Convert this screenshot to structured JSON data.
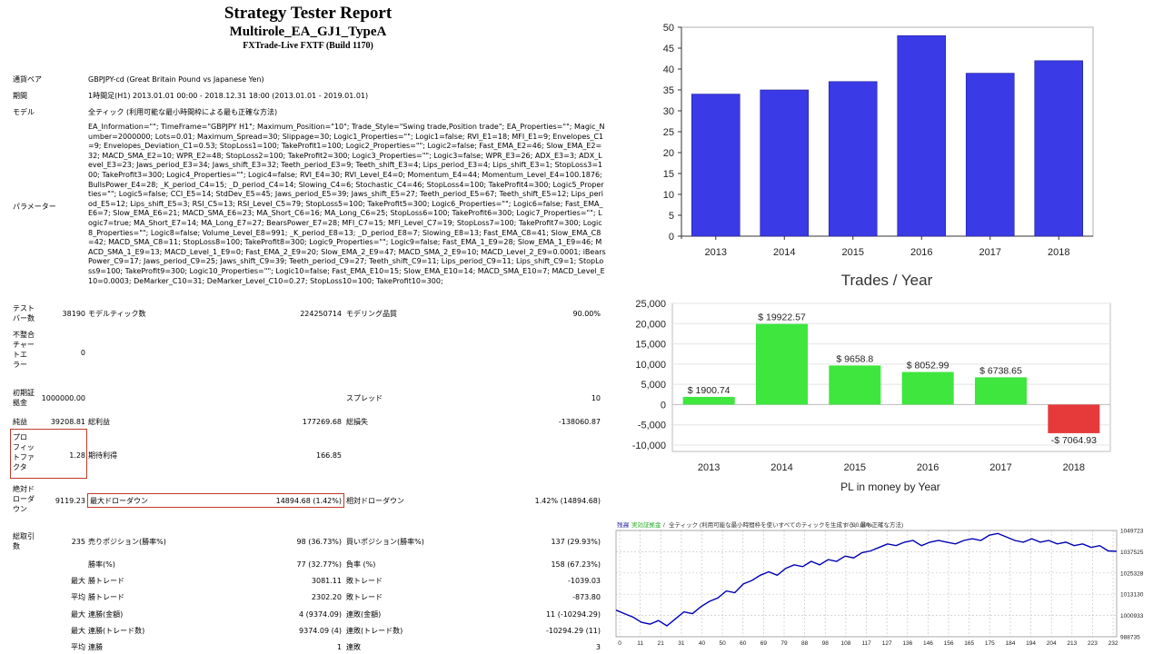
{
  "report": {
    "title": "Strategy Tester Report",
    "ea_name": "Multirole_EA_GJ1_TypeA",
    "server": "FXTrade-Live FXTF (Build 1170)"
  },
  "info": [
    {
      "label": "通貨ペア",
      "value": "GBPJPY-cd (Great Britain Pound vs Japanese Yen)"
    },
    {
      "label": "期間",
      "value": "1時間足(H1) 2013.01.01 00:00 - 2018.12.31 18:00 (2013.01.01 - 2019.01.01)"
    },
    {
      "label": "モデル",
      "value": "全ティック (利用可能な最小時間枠による最も正確な方法)"
    }
  ],
  "params": {
    "label": "パラメーター",
    "text": "EA_Information=\"\"; TimeFrame=\"GBPJPY H1\"; Maximum_Position=\"10\"; Trade_Style=\"Swing trade,Position trade\"; EA_Properties=\"\"; Magic_Number=2000000; Lots=0.01; Maximum_Spread=30; Slippage=30; Logic1_Properties=\"\"; Logic1=false; RVI_E1=18; MFI_E1=9; Envelopes_C1=9; Envelopes_Deviation_C1=0.53; StopLoss1=100; TakeProfit1=100; Logic2_Properties=\"\"; Logic2=false; Fast_EMA_E2=46; Slow_EMA_E2=32; MACD_SMA_E2=10; WPR_E2=48; StopLoss2=100; TakeProfit2=300; Logic3_Properties=\"\"; Logic3=false; WPR_E3=26; ADX_E3=3; ADX_Level_E3=23; Jaws_period_E3=34; Jaws_shift_E3=32; Teeth_period_E3=9; Teeth_shift_E3=4; Lips_period_E3=4; Lips_shift_E3=1; StopLoss3=100; TakeProfit3=300; Logic4_Properties=\"\"; Logic4=false; RVI_E4=30; RVI_Level_E4=0; Momentum_E4=44; Momentum_Level_E4=100.1876; BullsPower_E4=28; _K_period_C4=15; _D_period_C4=14; Slowing_C4=6; Stochastic_C4=46; StopLoss4=100; TakeProfit4=300; Logic5_Properties=\"\"; Logic5=false; CCI_E5=14; StdDev_E5=45; Jaws_period_E5=39; Jaws_shift_E5=27; Teeth_period_E5=67; Teeth_shift_E5=12; Lips_period_E5=12; Lips_shift_E5=3; RSI_C5=13; RSI_Level_C5=79; StopLoss5=100; TakeProfit5=300; Logic6_Properties=\"\"; Logic6=false; Fast_EMA_E6=7; Slow_EMA_E6=21; MACD_SMA_E6=23; MA_Short_C6=16; MA_Long_C6=25; StopLoss6=100; TakeProfit6=300; Logic7_Properties=\"\"; Logic7=true; MA_Short_E7=14; MA_Long_E7=27; BearsPower_E7=28; MFI_C7=15; MFI_Level_C7=19; StopLoss7=100; TakeProfit7=300; Logic8_Properties=\"\"; Logic8=false; Volume_Level_E8=991; _K_period_E8=13; _D_period_E8=7; Slowing_E8=13; Fast_EMA_C8=41; Slow_EMA_C8=42; MACD_SMA_C8=11; StopLoss8=100; TakeProfit8=300; Logic9_Properties=\"\"; Logic9=false; Fast_EMA_1_E9=28; Slow_EMA_1_E9=46; MACD_SMA_1_E9=13; MACD_Level_1_E9=0; Fast_EMA_2_E9=20; Slow_EMA_2_E9=47; MACD_SMA_2_E9=10; MACD_Level_2_E9=0.0001; iBearsPower_C9=17; Jaws_period_C9=25; Jaws_shift_C9=39; Teeth_period_C9=27; Teeth_shift_C9=11; Lips_period_C9=11; Lips_shift_C9=1; StopLoss9=100; TakeProfit9=300; Logic10_Properties=\"\"; Logic10=false; Fast_EMA_E10=15; Slow_EMA_E10=14; MACD_SMA_E10=7; MACD_Level_E10=0.0003; DeMarker_C10=31; DeMarker_Level_C10=0.27; StopLoss10=100; TakeProfit10=300;"
  },
  "stats": {
    "bars_label": "テスト\nバー数",
    "bars_value": "38190",
    "ticks_label": "モデルティック数",
    "ticks_value": "224250714",
    "quality_label": "モデリング品質",
    "quality_value": "90.00%",
    "mismatch_label": "不整合\nチャー\nトエ\nラー",
    "mismatch_value": "0",
    "deposit_label": "初期証\n拠金",
    "deposit_value": "1000000.00",
    "spread_label": "スプレッド",
    "spread_value": "10",
    "net_label": "純益",
    "net_value": "39208.81",
    "gross_profit_label": "総利益",
    "gross_profit_value": "177269.68",
    "gross_loss_label": "総損失",
    "gross_loss_value": "-138060.87",
    "pf_label": "プロ\nフィッ\nトファ\nクタ",
    "pf_value": "1.28",
    "expected_label": "期待利得",
    "expected_value": "166.85",
    "abs_dd_label": "絶対ド\nローダ\nウン",
    "abs_dd_value": "9119.23",
    "max_dd_label": "最大ドローダウン",
    "max_dd_value": "14894.68 (1.42%)",
    "rel_dd_label": "相対ドローダウン",
    "rel_dd_value": "1.42% (14894.68)",
    "total_trades_label": "総取引\n数",
    "total_trades_value": "235",
    "short_label": "売りポジション(勝率%)",
    "short_value": "98 (36.73%)",
    "long_label": "買いポジション(勝率%)",
    "long_value": "137 (29.93%)",
    "win_rate_label": "勝率(%)",
    "win_rate_value": "77 (32.77%)",
    "loss_rate_label": "負率 (%)",
    "loss_rate_value": "158 (67.23%)",
    "max_label": "最大",
    "avg_label": "平均",
    "max_win_label": "勝トレード",
    "max_win_value": "3081.11",
    "max_loss_label": "敗トレード",
    "max_loss_value": "-1039.03",
    "avg_win_label": "勝トレード",
    "avg_win_value": "2302.20",
    "avg_loss_label": "敗トレード",
    "avg_loss_value": "-873.80",
    "cons_win_money_label": "連勝(金額)",
    "cons_win_money_value": "4 (9374.09)",
    "cons_loss_money_label": "連敗(金額)",
    "cons_loss_money_value": "11 (-10294.29)",
    "cons_win_trades_label": "連勝(トレード数)",
    "cons_win_trades_value": "9374.09 (4)",
    "cons_loss_trades_label": "連敗(トレード数)",
    "cons_loss_trades_value": "-10294.29 (11)",
    "avg_cons_win_label": "連勝",
    "avg_cons_win_value": "1",
    "avg_cons_loss_label": "連敗",
    "avg_cons_loss_value": "3"
  },
  "chart_data": [
    {
      "type": "bar",
      "title": "Trades / Year",
      "categories": [
        "2013",
        "2014",
        "2015",
        "2016",
        "2017",
        "2018"
      ],
      "values": [
        34,
        35,
        37,
        48,
        39,
        42
      ],
      "yticks": [
        "0",
        "5",
        "10",
        "15",
        "20",
        "25",
        "30",
        "35",
        "40",
        "45",
        "50"
      ],
      "ylim": [
        0,
        50
      ],
      "color": "#3a3ae6"
    },
    {
      "type": "bar",
      "title": "PL in money by Year",
      "categories": [
        "2013",
        "2014",
        "2015",
        "2016",
        "2017",
        "2018"
      ],
      "values": [
        1900.74,
        19922.57,
        9658.8,
        8052.99,
        6738.65,
        -7064.93
      ],
      "labels": [
        "$ 1900.74",
        "$ 19922.57",
        "$ 9658.8",
        "$ 8052.99",
        "$ 6738.65",
        "-$ 7064.93"
      ],
      "yticks": [
        "25,000",
        "20,000",
        "15,000",
        "10,000",
        "5,000",
        "0",
        "-5,000",
        "-10,000"
      ],
      "ylim": [
        -10000,
        25000
      ],
      "pos_color": "#3ee63e",
      "neg_color": "#e63a3a"
    },
    {
      "type": "line",
      "legend_balance": "残高",
      "legend_equity": "実効証拠金",
      "legend_rest": "全ティック (利用可能な最小時間枠を使いすべてのティックを生成する、最も正確な方法)",
      "legend_quality": "90.00%",
      "yticks": [
        "1049723",
        "1037525",
        "1025328",
        "1013130",
        "1000933",
        "988735"
      ],
      "ylim": [
        988735,
        1049723
      ],
      "xticks": [
        "0",
        "11",
        "21",
        "31",
        "40",
        "50",
        "60",
        "69",
        "79",
        "88",
        "98",
        "108",
        "117",
        "127",
        "136",
        "146",
        "156",
        "165",
        "175",
        "184",
        "194",
        "204",
        "213",
        "223",
        "232"
      ],
      "xlim": [
        0,
        236
      ],
      "color": "#0000b4",
      "series_x": [
        0,
        4,
        8,
        12,
        16,
        20,
        24,
        28,
        32,
        36,
        40,
        44,
        48,
        52,
        56,
        60,
        64,
        68,
        72,
        76,
        80,
        84,
        88,
        92,
        96,
        100,
        104,
        108,
        112,
        116,
        120,
        124,
        128,
        132,
        136,
        140,
        144,
        148,
        152,
        156,
        160,
        164,
        168,
        172,
        176,
        180,
        184,
        188,
        192,
        196,
        200,
        204,
        208,
        212,
        216,
        220,
        224,
        228,
        232,
        236
      ],
      "series_y": [
        1004000,
        1002000,
        1000000,
        997000,
        996000,
        998000,
        995000,
        999000,
        1003000,
        1002000,
        1006000,
        1009000,
        1011000,
        1015000,
        1014000,
        1019000,
        1021000,
        1024000,
        1026000,
        1024000,
        1028000,
        1030000,
        1029000,
        1032000,
        1030000,
        1033000,
        1032000,
        1035000,
        1034000,
        1037000,
        1038000,
        1040000,
        1042000,
        1041000,
        1043000,
        1044000,
        1041000,
        1043000,
        1044000,
        1043000,
        1042000,
        1044000,
        1045000,
        1044000,
        1047000,
        1048000,
        1046000,
        1044000,
        1043000,
        1045000,
        1043000,
        1044000,
        1042000,
        1043000,
        1041000,
        1042000,
        1040000,
        1041000,
        1038000,
        1037800
      ]
    }
  ]
}
